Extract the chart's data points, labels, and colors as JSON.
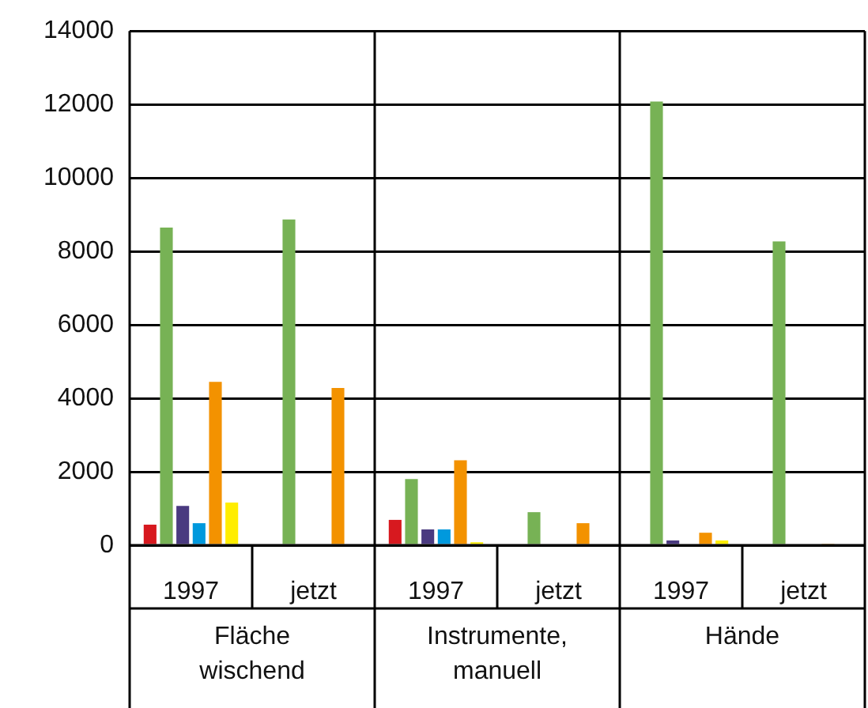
{
  "chart_data": {
    "type": "bar",
    "categories": [
      "1997",
      "jetzt",
      "1997",
      "jetzt",
      "1997",
      "jetzt"
    ],
    "series": [
      {
        "color": "#d7191f",
        "values": [
          560,
          null,
          690,
          null,
          null,
          null
        ]
      },
      {
        "color": "#77b255",
        "values": [
          8650,
          8870,
          1800,
          900,
          12080,
          8270
        ]
      },
      {
        "color": "#4a3a80",
        "values": [
          1070,
          null,
          430,
          null,
          130,
          null
        ]
      },
      {
        "color": "#0099dd",
        "values": [
          600,
          null,
          430,
          null,
          null,
          null
        ]
      },
      {
        "color": "#f39200",
        "values": [
          4450,
          4280,
          2310,
          600,
          340,
          40
        ]
      },
      {
        "color": "#ffed00",
        "values": [
          1160,
          null,
          80,
          null,
          130,
          null
        ]
      }
    ],
    "ylim": [
      0,
      14000
    ],
    "yticks": [
      0,
      2000,
      4000,
      6000,
      8000,
      10000,
      12000,
      14000
    ],
    "grid": "y",
    "legend": false,
    "annotations": [
      "Fläche wischend",
      "Instrumente, manuell",
      "Hände"
    ]
  }
}
